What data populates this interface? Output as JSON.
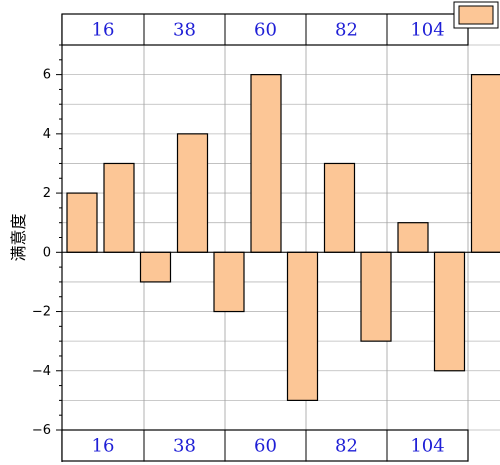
{
  "chart_data": {
    "type": "bar",
    "ylabel": "满意度",
    "xlabel": "",
    "title": "",
    "ylim": [
      -6,
      7
    ],
    "yticks": [
      -6,
      -4,
      -2,
      0,
      2,
      4,
      6
    ],
    "category_labels": [
      "16",
      "38",
      "60",
      "82",
      "104"
    ],
    "series": [
      {
        "values": [
          2,
          3,
          -1,
          4,
          -2,
          6,
          -5,
          3,
          -3,
          1,
          -4,
          6
        ]
      }
    ],
    "bar_color": "#fcc696",
    "grid": true,
    "legend": "top-right"
  }
}
